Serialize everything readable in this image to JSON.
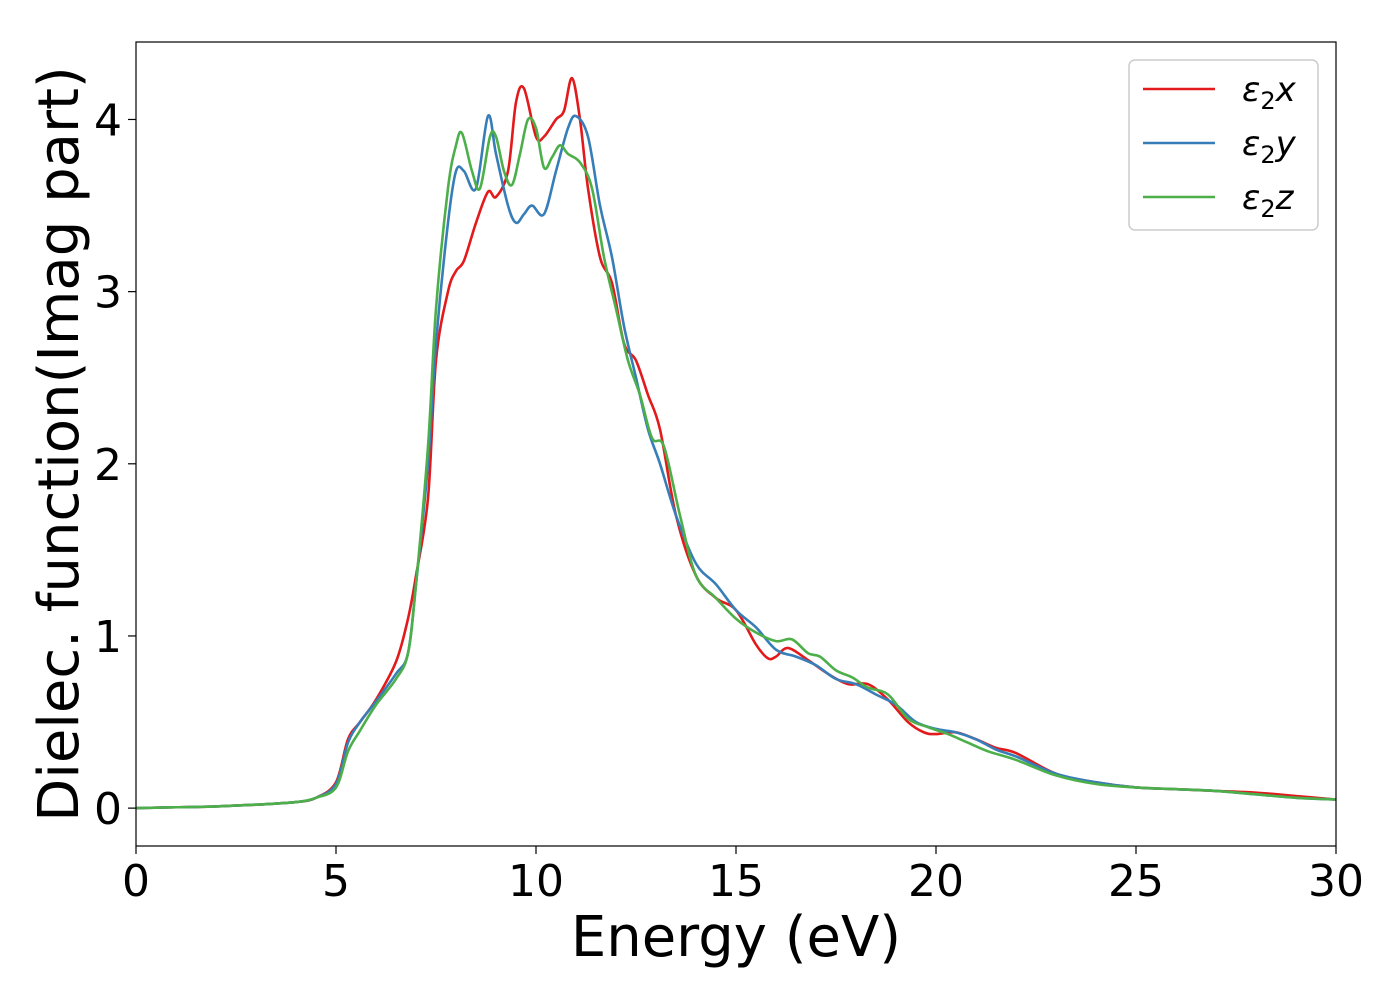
{
  "chart_data": {
    "type": "line",
    "title": "",
    "xlabel": "Energy (eV)",
    "ylabel": "Dielec. function(Imag part)",
    "xlim": [
      0,
      30
    ],
    "ylim": [
      -0.22,
      4.45
    ],
    "xticks": [
      0,
      5,
      10,
      15,
      20,
      25,
      30
    ],
    "xtick_labels": [
      "0",
      "5",
      "10",
      "15",
      "20",
      "25",
      "30"
    ],
    "yticks": [
      0,
      1,
      2,
      3,
      4
    ],
    "ytick_labels": [
      "0",
      "1",
      "2",
      "3",
      "4"
    ],
    "grid": false,
    "legend_position": "top-right",
    "series": [
      {
        "name": "ε₂x",
        "legend": {
          "base": "ε",
          "sub": "2",
          "suffix": "x"
        },
        "color": "#e31a1c",
        "x": [
          0,
          1,
          2,
          3,
          4,
          4.5,
          5,
          5.3,
          5.6,
          6,
          6.5,
          6.8,
          7,
          7.3,
          7.5,
          7.8,
          8,
          8.2,
          8.5,
          8.8,
          9,
          9.3,
          9.5,
          9.7,
          10,
          10.2,
          10.5,
          10.7,
          10.9,
          11.1,
          11.3,
          11.6,
          11.9,
          12.2,
          12.5,
          12.8,
          13.1,
          13.5,
          14,
          14.5,
          15,
          15.5,
          15.8,
          16,
          16.3,
          16.8,
          17.3,
          17.8,
          18.3,
          18.8,
          19.3,
          19.7,
          20,
          20.5,
          21,
          21.5,
          22,
          23,
          24,
          25,
          26,
          27,
          28,
          29,
          30
        ],
        "y": [
          0.0,
          0.005,
          0.01,
          0.02,
          0.035,
          0.06,
          0.15,
          0.4,
          0.5,
          0.63,
          0.85,
          1.1,
          1.35,
          1.8,
          2.6,
          3.0,
          3.12,
          3.18,
          3.4,
          3.58,
          3.55,
          3.7,
          4.1,
          4.18,
          3.9,
          3.9,
          4.0,
          4.05,
          4.24,
          4.0,
          3.6,
          3.2,
          3.05,
          2.7,
          2.6,
          2.4,
          2.2,
          1.7,
          1.35,
          1.22,
          1.15,
          0.95,
          0.87,
          0.88,
          0.93,
          0.86,
          0.78,
          0.72,
          0.72,
          0.63,
          0.5,
          0.44,
          0.43,
          0.44,
          0.4,
          0.35,
          0.32,
          0.2,
          0.15,
          0.12,
          0.11,
          0.1,
          0.09,
          0.07,
          0.05
        ]
      },
      {
        "name": "ε₂y",
        "legend": {
          "base": "ε",
          "sub": "2",
          "suffix": "y"
        },
        "color": "#377eb8",
        "x": [
          0,
          1,
          2,
          3,
          4,
          4.5,
          5,
          5.3,
          5.6,
          6,
          6.5,
          6.8,
          7,
          7.3,
          7.5,
          7.8,
          8,
          8.2,
          8.5,
          8.8,
          9,
          9.3,
          9.5,
          9.7,
          9.9,
          10.2,
          10.5,
          10.8,
          11,
          11.3,
          11.6,
          11.9,
          12.2,
          12.5,
          12.8,
          13.1,
          13.5,
          14,
          14.5,
          15,
          15.5,
          16,
          16.5,
          17,
          17.5,
          18,
          18.5,
          19,
          19.5,
          20,
          20.5,
          21,
          21.5,
          22,
          23,
          24,
          25,
          26,
          27,
          28,
          29,
          30
        ],
        "y": [
          0.0,
          0.005,
          0.01,
          0.02,
          0.035,
          0.06,
          0.14,
          0.38,
          0.5,
          0.62,
          0.78,
          0.9,
          1.3,
          2.0,
          2.7,
          3.4,
          3.7,
          3.7,
          3.6,
          4.02,
          3.8,
          3.5,
          3.4,
          3.45,
          3.5,
          3.45,
          3.7,
          3.95,
          4.02,
          3.9,
          3.5,
          3.2,
          2.8,
          2.5,
          2.2,
          2.0,
          1.7,
          1.42,
          1.3,
          1.15,
          1.05,
          0.92,
          0.88,
          0.83,
          0.75,
          0.72,
          0.66,
          0.6,
          0.5,
          0.46,
          0.44,
          0.4,
          0.34,
          0.3,
          0.2,
          0.15,
          0.12,
          0.11,
          0.1,
          0.08,
          0.06,
          0.05
        ]
      },
      {
        "name": "ε₂z",
        "legend": {
          "base": "ε",
          "sub": "2",
          "suffix": "z"
        },
        "color": "#4daf4a",
        "x": [
          0,
          1,
          2,
          3,
          4,
          4.5,
          5,
          5.3,
          5.6,
          6,
          6.5,
          6.8,
          7,
          7.3,
          7.5,
          7.8,
          8,
          8.15,
          8.4,
          8.6,
          8.85,
          9,
          9.2,
          9.4,
          9.6,
          9.8,
          10,
          10.2,
          10.4,
          10.6,
          10.8,
          11.1,
          11.4,
          11.7,
          12,
          12.3,
          12.6,
          12.9,
          13.2,
          13.6,
          14,
          14.5,
          15,
          15.5,
          16,
          16.4,
          16.8,
          17.1,
          17.5,
          17.9,
          18.3,
          18.8,
          19.3,
          19.8,
          20.3,
          20.8,
          21.3,
          22,
          23,
          24,
          25,
          26,
          27,
          28,
          29,
          30
        ],
        "y": [
          0.0,
          0.005,
          0.01,
          0.02,
          0.035,
          0.06,
          0.12,
          0.33,
          0.45,
          0.6,
          0.75,
          0.9,
          1.3,
          2.1,
          2.9,
          3.6,
          3.85,
          3.92,
          3.7,
          3.6,
          3.9,
          3.9,
          3.7,
          3.62,
          3.8,
          4.0,
          3.95,
          3.72,
          3.78,
          3.85,
          3.8,
          3.75,
          3.6,
          3.2,
          2.9,
          2.6,
          2.4,
          2.15,
          2.1,
          1.7,
          1.35,
          1.22,
          1.1,
          1.02,
          0.97,
          0.98,
          0.9,
          0.88,
          0.8,
          0.76,
          0.7,
          0.66,
          0.52,
          0.47,
          0.43,
          0.38,
          0.33,
          0.28,
          0.19,
          0.14,
          0.12,
          0.11,
          0.1,
          0.08,
          0.06,
          0.05
        ]
      }
    ]
  }
}
